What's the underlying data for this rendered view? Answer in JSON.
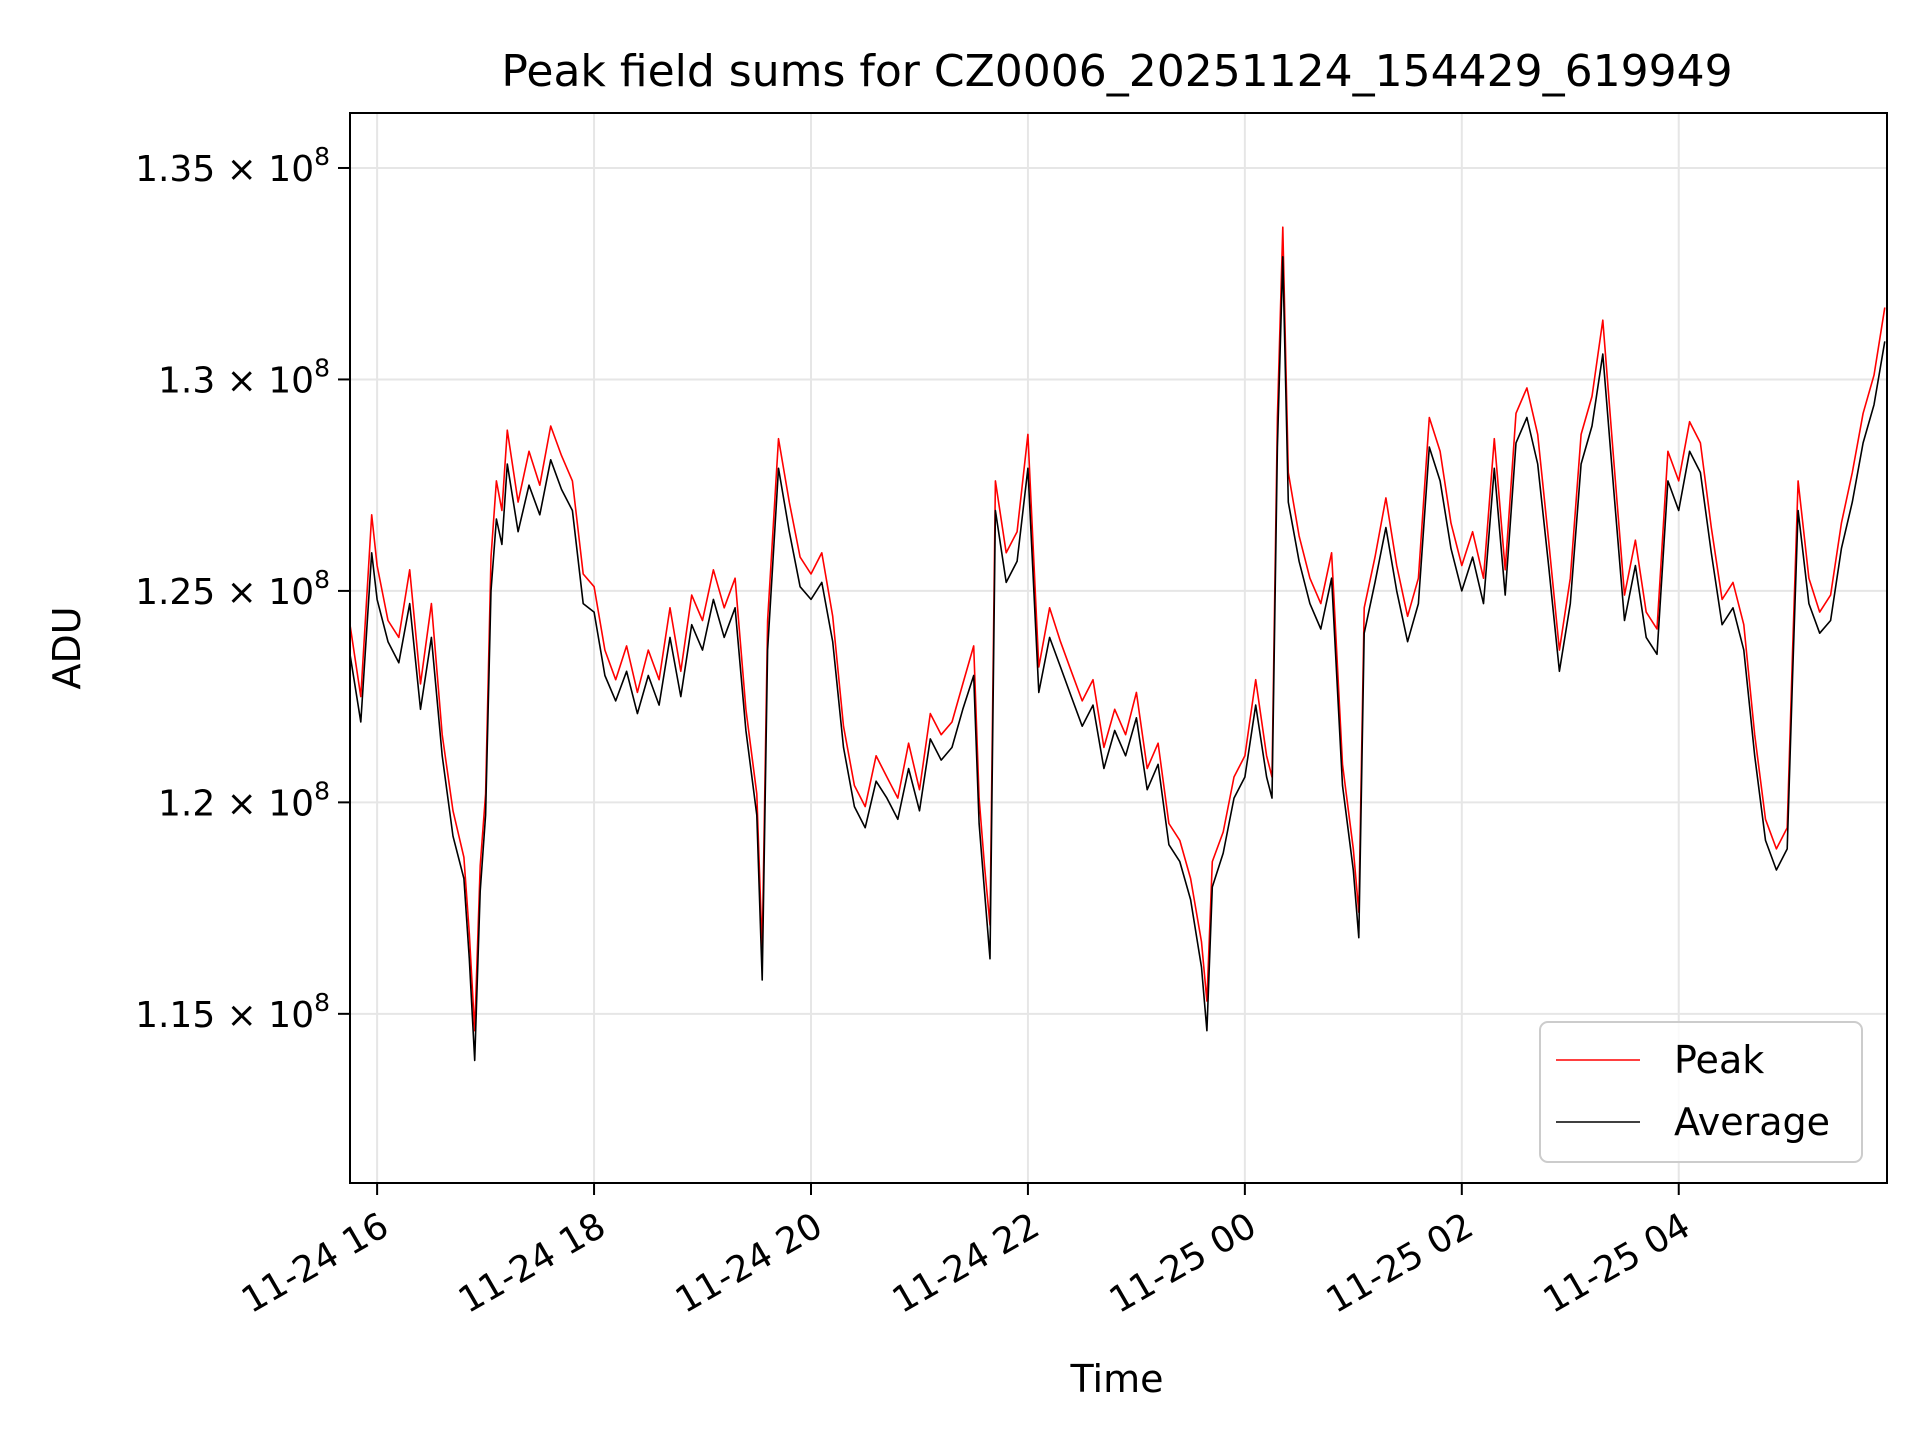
{
  "chart_data": {
    "type": "line",
    "title": "Peak field sums for CZ0006_20251124_154429_619949",
    "xlabel": "Time",
    "ylabel": "ADU",
    "x_unit": "hours since 11-24 00:00",
    "xlim": [
      15.75,
      29.92
    ],
    "ylim": [
      111000000,
      136300000
    ],
    "grid": true,
    "legend_position": "lower-right",
    "x_ticks": [
      {
        "value": 16,
        "label": "11-24 16"
      },
      {
        "value": 18,
        "label": "11-24 18"
      },
      {
        "value": 20,
        "label": "11-24 20"
      },
      {
        "value": 22,
        "label": "11-24 22"
      },
      {
        "value": 24,
        "label": "11-25 00"
      },
      {
        "value": 26,
        "label": "11-25 02"
      },
      {
        "value": 28,
        "label": "11-25 04"
      }
    ],
    "y_ticks": [
      {
        "value": 115000000,
        "mantissa": "1.15",
        "exponent": "8"
      },
      {
        "value": 120000000,
        "mantissa": "1.2",
        "exponent": "8"
      },
      {
        "value": 125000000,
        "mantissa": "1.25",
        "exponent": "8"
      },
      {
        "value": 130000000,
        "mantissa": "1.3",
        "exponent": "8"
      },
      {
        "value": 135000000,
        "mantissa": "1.35",
        "exponent": "8"
      }
    ],
    "y_tick_suffix": "× 10",
    "series": [
      {
        "name": "Peak",
        "color": "#ff0000",
        "x": [
          15.75,
          15.85,
          15.95,
          16.0,
          16.1,
          16.2,
          16.3,
          16.4,
          16.5,
          16.6,
          16.7,
          16.8,
          16.85,
          16.9,
          16.95,
          17.0,
          17.05,
          17.1,
          17.15,
          17.2,
          17.3,
          17.4,
          17.5,
          17.6,
          17.7,
          17.8,
          17.9,
          18.0,
          18.1,
          18.2,
          18.3,
          18.4,
          18.5,
          18.6,
          18.7,
          18.8,
          18.9,
          19.0,
          19.1,
          19.2,
          19.3,
          19.4,
          19.5,
          19.55,
          19.6,
          19.7,
          19.8,
          19.9,
          20.0,
          20.1,
          20.2,
          20.3,
          20.4,
          20.5,
          20.6,
          20.7,
          20.8,
          20.9,
          21.0,
          21.1,
          21.2,
          21.3,
          21.4,
          21.5,
          21.55,
          21.6,
          21.65,
          21.7,
          21.8,
          21.9,
          22.0,
          22.1,
          22.2,
          22.3,
          22.4,
          22.5,
          22.6,
          22.7,
          22.8,
          22.9,
          23.0,
          23.1,
          23.2,
          23.3,
          23.4,
          23.5,
          23.6,
          23.65,
          23.7,
          23.8,
          23.9,
          24.0,
          24.1,
          24.2,
          24.25,
          24.3,
          24.35,
          24.4,
          24.5,
          24.6,
          24.7,
          24.8,
          24.9,
          25.0,
          25.05,
          25.1,
          25.2,
          25.3,
          25.4,
          25.5,
          25.6,
          25.7,
          25.8,
          25.9,
          26.0,
          26.1,
          26.2,
          26.3,
          26.4,
          26.5,
          26.6,
          26.7,
          26.8,
          26.9,
          27.0,
          27.1,
          27.2,
          27.3,
          27.4,
          27.5,
          27.6,
          27.7,
          27.8,
          27.9,
          28.0,
          28.1,
          28.2,
          28.3,
          28.4,
          28.5,
          28.6,
          28.7,
          28.8,
          28.9,
          29.0,
          29.05,
          29.1,
          29.2,
          29.3,
          29.4,
          29.5,
          29.6,
          29.7,
          29.8,
          29.9
        ],
        "y": [
          124200000,
          122500000,
          126800000,
          125600000,
          124300000,
          123900000,
          125500000,
          122800000,
          124700000,
          121600000,
          119800000,
          118700000,
          116900000,
          114600000,
          118500000,
          120200000,
          125800000,
          127600000,
          126900000,
          128800000,
          127100000,
          128300000,
          127500000,
          128900000,
          128200000,
          127600000,
          125400000,
          125100000,
          123600000,
          122900000,
          123700000,
          122600000,
          123600000,
          122900000,
          124600000,
          123100000,
          124900000,
          124300000,
          125500000,
          124600000,
          125300000,
          122200000,
          120200000,
          116500000,
          124300000,
          128600000,
          127100000,
          125800000,
          125400000,
          125900000,
          124400000,
          121800000,
          120400000,
          119900000,
          121100000,
          120600000,
          120100000,
          121400000,
          120300000,
          122100000,
          121600000,
          121900000,
          122800000,
          123700000,
          120100000,
          118500000,
          117100000,
          127600000,
          125900000,
          126400000,
          128700000,
          123200000,
          124600000,
          123800000,
          123100000,
          122400000,
          122900000,
          121300000,
          122200000,
          121600000,
          122600000,
          120800000,
          121400000,
          119500000,
          119100000,
          118200000,
          116700000,
          115300000,
          118600000,
          119300000,
          120600000,
          121100000,
          122900000,
          121100000,
          120600000,
          129100000,
          133600000,
          127800000,
          126300000,
          125300000,
          124700000,
          125900000,
          120900000,
          118900000,
          117400000,
          124600000,
          125800000,
          127200000,
          125600000,
          124400000,
          125300000,
          129100000,
          128300000,
          126600000,
          125600000,
          126400000,
          125300000,
          128600000,
          125500000,
          129200000,
          129800000,
          128700000,
          126200000,
          123600000,
          125300000,
          128700000,
          129600000,
          131400000,
          128100000,
          124900000,
          126200000,
          124500000,
          124100000,
          128300000,
          127600000,
          129000000,
          128500000,
          126500000,
          124800000,
          125200000,
          124200000,
          121600000,
          119600000,
          118900000,
          119400000,
          123600000,
          127600000,
          125300000,
          124500000,
          124900000,
          126600000,
          127800000,
          129200000,
          130100000,
          131700000
        ]
      },
      {
        "name": "Average",
        "color": "#000000",
        "x": [
          15.75,
          15.85,
          15.95,
          16.0,
          16.1,
          16.2,
          16.3,
          16.4,
          16.5,
          16.6,
          16.7,
          16.8,
          16.85,
          16.9,
          16.95,
          17.0,
          17.05,
          17.1,
          17.15,
          17.2,
          17.3,
          17.4,
          17.5,
          17.6,
          17.7,
          17.8,
          17.9,
          18.0,
          18.1,
          18.2,
          18.3,
          18.4,
          18.5,
          18.6,
          18.7,
          18.8,
          18.9,
          19.0,
          19.1,
          19.2,
          19.3,
          19.4,
          19.5,
          19.55,
          19.6,
          19.7,
          19.8,
          19.9,
          20.0,
          20.1,
          20.2,
          20.3,
          20.4,
          20.5,
          20.6,
          20.7,
          20.8,
          20.9,
          21.0,
          21.1,
          21.2,
          21.3,
          21.4,
          21.5,
          21.55,
          21.6,
          21.65,
          21.7,
          21.8,
          21.9,
          22.0,
          22.1,
          22.2,
          22.3,
          22.4,
          22.5,
          22.6,
          22.7,
          22.8,
          22.9,
          23.0,
          23.1,
          23.2,
          23.3,
          23.4,
          23.5,
          23.6,
          23.65,
          23.7,
          23.8,
          23.9,
          24.0,
          24.1,
          24.2,
          24.25,
          24.3,
          24.35,
          24.4,
          24.5,
          24.6,
          24.7,
          24.8,
          24.9,
          25.0,
          25.05,
          25.1,
          25.2,
          25.3,
          25.4,
          25.5,
          25.6,
          25.7,
          25.8,
          25.9,
          26.0,
          26.1,
          26.2,
          26.3,
          26.4,
          26.5,
          26.6,
          26.7,
          26.8,
          26.9,
          27.0,
          27.1,
          27.2,
          27.3,
          27.4,
          27.5,
          27.6,
          27.7,
          27.8,
          27.9,
          28.0,
          28.1,
          28.2,
          28.3,
          28.4,
          28.5,
          28.6,
          28.7,
          28.8,
          28.9,
          29.0,
          29.05,
          29.1,
          29.2,
          29.3,
          29.4,
          29.5,
          29.6,
          29.7,
          29.8,
          29.9
        ],
        "y": [
          123500000,
          121900000,
          125900000,
          124800000,
          123800000,
          123300000,
          124700000,
          122200000,
          123900000,
          121100000,
          119200000,
          118200000,
          116300000,
          113900000,
          117900000,
          119700000,
          125000000,
          126700000,
          126100000,
          128000000,
          126400000,
          127500000,
          126800000,
          128100000,
          127400000,
          126900000,
          124700000,
          124500000,
          123000000,
          122400000,
          123100000,
          122100000,
          123000000,
          122300000,
          123900000,
          122500000,
          124200000,
          123600000,
          124800000,
          123900000,
          124600000,
          121700000,
          119700000,
          115800000,
          123600000,
          127900000,
          126400000,
          125100000,
          124800000,
          125200000,
          123800000,
          121300000,
          119900000,
          119400000,
          120500000,
          120100000,
          119600000,
          120800000,
          119800000,
          121500000,
          121000000,
          121300000,
          122200000,
          123000000,
          119500000,
          117900000,
          116300000,
          126900000,
          125200000,
          125700000,
          127900000,
          122600000,
          123900000,
          123200000,
          122500000,
          121800000,
          122300000,
          120800000,
          121700000,
          121100000,
          122000000,
          120300000,
          120900000,
          119000000,
          118600000,
          117700000,
          116100000,
          114600000,
          118000000,
          118800000,
          120100000,
          120600000,
          122300000,
          120600000,
          120100000,
          128400000,
          132900000,
          127100000,
          125700000,
          124700000,
          124100000,
          125300000,
          120400000,
          118400000,
          116800000,
          124000000,
          125200000,
          126500000,
          125000000,
          123800000,
          124700000,
          128400000,
          127600000,
          126000000,
          125000000,
          125800000,
          124700000,
          127900000,
          124900000,
          128500000,
          129100000,
          128000000,
          125600000,
          123100000,
          124700000,
          128000000,
          128900000,
          130600000,
          127400000,
          124300000,
          125600000,
          123900000,
          123500000,
          127600000,
          126900000,
          128300000,
          127800000,
          125900000,
          124200000,
          124600000,
          123600000,
          121100000,
          119100000,
          118400000,
          118900000,
          123000000,
          126900000,
          124700000,
          124000000,
          124300000,
          126000000,
          127100000,
          128500000,
          129400000,
          130900000
        ]
      }
    ]
  }
}
